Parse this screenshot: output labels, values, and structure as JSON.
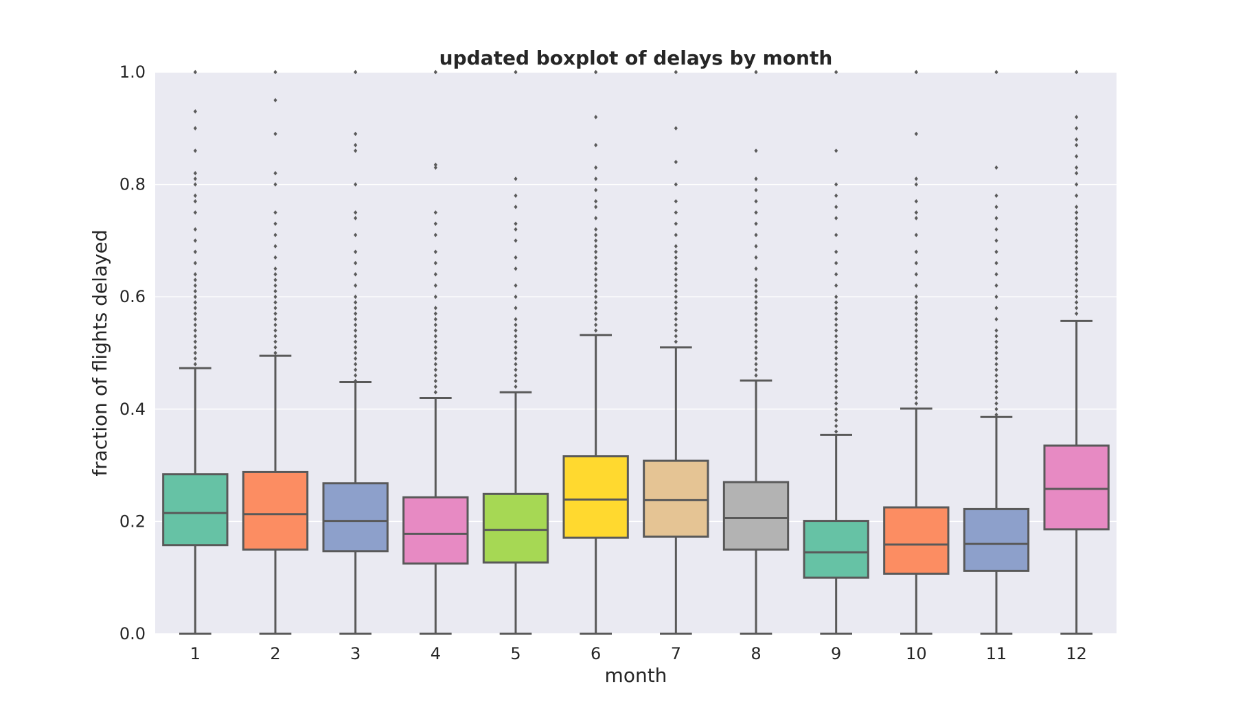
{
  "chart_data": {
    "type": "boxplot",
    "title": "updated boxplot of delays by month",
    "xlabel": "month",
    "ylabel": "fraction of flights delayed",
    "ylim": [
      0.0,
      1.0
    ],
    "yticks": [
      "0.0",
      "0.2",
      "0.4",
      "0.6",
      "0.8",
      "1.0"
    ],
    "grid": true,
    "categories": [
      "1",
      "2",
      "3",
      "4",
      "5",
      "6",
      "7",
      "8",
      "9",
      "10",
      "11",
      "12"
    ],
    "boxes": [
      {
        "month": "1",
        "min": 0.0,
        "q1": 0.158,
        "median": 0.215,
        "q3": 0.284,
        "max": 0.473,
        "color": "#66c2a5",
        "outliers": [
          0.48,
          0.49,
          0.5,
          0.51,
          0.52,
          0.53,
          0.54,
          0.55,
          0.56,
          0.57,
          0.58,
          0.59,
          0.6,
          0.61,
          0.62,
          0.63,
          0.64,
          0.66,
          0.68,
          0.7,
          0.72,
          0.75,
          0.77,
          0.78,
          0.8,
          0.81,
          0.82,
          0.86,
          0.9,
          0.93,
          1.0
        ]
      },
      {
        "month": "2",
        "min": 0.0,
        "q1": 0.15,
        "median": 0.213,
        "q3": 0.288,
        "max": 0.495,
        "color": "#fc8d62",
        "outliers": [
          0.5,
          0.51,
          0.52,
          0.53,
          0.54,
          0.55,
          0.56,
          0.57,
          0.58,
          0.59,
          0.6,
          0.61,
          0.62,
          0.63,
          0.64,
          0.65,
          0.67,
          0.69,
          0.71,
          0.73,
          0.75,
          0.8,
          0.82,
          0.89,
          0.95,
          1.0
        ]
      },
      {
        "month": "3",
        "min": 0.0,
        "q1": 0.147,
        "median": 0.201,
        "q3": 0.268,
        "max": 0.448,
        "color": "#8da0cb",
        "outliers": [
          0.45,
          0.46,
          0.47,
          0.48,
          0.49,
          0.5,
          0.51,
          0.52,
          0.53,
          0.54,
          0.55,
          0.56,
          0.57,
          0.58,
          0.59,
          0.6,
          0.62,
          0.64,
          0.66,
          0.68,
          0.71,
          0.74,
          0.75,
          0.8,
          0.86,
          0.87,
          0.89,
          1.0
        ]
      },
      {
        "month": "4",
        "min": 0.0,
        "q1": 0.125,
        "median": 0.178,
        "q3": 0.243,
        "max": 0.42,
        "color": "#e78ac3",
        "outliers": [
          0.43,
          0.44,
          0.45,
          0.46,
          0.47,
          0.48,
          0.49,
          0.5,
          0.51,
          0.52,
          0.53,
          0.54,
          0.55,
          0.56,
          0.57,
          0.58,
          0.6,
          0.62,
          0.64,
          0.66,
          0.68,
          0.71,
          0.73,
          0.75,
          0.83,
          0.835,
          1.0
        ]
      },
      {
        "month": "5",
        "min": 0.0,
        "q1": 0.127,
        "median": 0.185,
        "q3": 0.249,
        "max": 0.43,
        "color": "#a6d854",
        "outliers": [
          0.44,
          0.45,
          0.46,
          0.47,
          0.48,
          0.49,
          0.5,
          0.51,
          0.52,
          0.53,
          0.54,
          0.55,
          0.56,
          0.58,
          0.6,
          0.62,
          0.65,
          0.67,
          0.7,
          0.72,
          0.73,
          0.76,
          0.78,
          0.81,
          1.0
        ]
      },
      {
        "month": "6",
        "min": 0.0,
        "q1": 0.171,
        "median": 0.239,
        "q3": 0.316,
        "max": 0.532,
        "color": "#ffd92f",
        "outliers": [
          0.54,
          0.55,
          0.56,
          0.57,
          0.58,
          0.59,
          0.6,
          0.61,
          0.62,
          0.63,
          0.64,
          0.65,
          0.66,
          0.67,
          0.68,
          0.69,
          0.7,
          0.71,
          0.72,
          0.74,
          0.76,
          0.77,
          0.79,
          0.81,
          0.83,
          0.87,
          0.92,
          1.0
        ]
      },
      {
        "month": "7",
        "min": 0.0,
        "q1": 0.173,
        "median": 0.238,
        "q3": 0.308,
        "max": 0.51,
        "color": "#e5c494",
        "outliers": [
          0.52,
          0.53,
          0.54,
          0.55,
          0.56,
          0.57,
          0.58,
          0.59,
          0.6,
          0.61,
          0.62,
          0.63,
          0.64,
          0.65,
          0.66,
          0.67,
          0.68,
          0.69,
          0.71,
          0.73,
          0.75,
          0.77,
          0.8,
          0.84,
          0.9,
          1.0
        ]
      },
      {
        "month": "8",
        "min": 0.0,
        "q1": 0.15,
        "median": 0.206,
        "q3": 0.27,
        "max": 0.451,
        "color": "#b3b3b3",
        "outliers": [
          0.46,
          0.47,
          0.48,
          0.49,
          0.5,
          0.51,
          0.52,
          0.53,
          0.54,
          0.55,
          0.56,
          0.57,
          0.58,
          0.59,
          0.6,
          0.61,
          0.62,
          0.63,
          0.65,
          0.67,
          0.69,
          0.71,
          0.73,
          0.75,
          0.77,
          0.79,
          0.81,
          0.86,
          1.0
        ]
      },
      {
        "month": "9",
        "min": 0.0,
        "q1": 0.1,
        "median": 0.145,
        "q3": 0.201,
        "max": 0.354,
        "color": "#66c2a5",
        "outliers": [
          0.36,
          0.37,
          0.38,
          0.39,
          0.4,
          0.41,
          0.42,
          0.43,
          0.44,
          0.45,
          0.46,
          0.47,
          0.48,
          0.49,
          0.5,
          0.51,
          0.52,
          0.53,
          0.54,
          0.55,
          0.56,
          0.57,
          0.58,
          0.59,
          0.6,
          0.62,
          0.64,
          0.66,
          0.68,
          0.71,
          0.74,
          0.76,
          0.78,
          0.8,
          0.86,
          1.0
        ]
      },
      {
        "month": "10",
        "min": 0.0,
        "q1": 0.107,
        "median": 0.159,
        "q3": 0.225,
        "max": 0.401,
        "color": "#fc8d62",
        "outliers": [
          0.41,
          0.42,
          0.43,
          0.44,
          0.45,
          0.46,
          0.47,
          0.48,
          0.49,
          0.5,
          0.51,
          0.52,
          0.53,
          0.54,
          0.55,
          0.56,
          0.57,
          0.58,
          0.59,
          0.6,
          0.62,
          0.64,
          0.66,
          0.68,
          0.71,
          0.74,
          0.75,
          0.77,
          0.8,
          0.81,
          0.89,
          1.0
        ]
      },
      {
        "month": "11",
        "min": 0.0,
        "q1": 0.112,
        "median": 0.16,
        "q3": 0.222,
        "max": 0.386,
        "color": "#8da0cb",
        "outliers": [
          0.39,
          0.4,
          0.41,
          0.42,
          0.43,
          0.44,
          0.45,
          0.46,
          0.47,
          0.48,
          0.49,
          0.5,
          0.51,
          0.52,
          0.53,
          0.54,
          0.56,
          0.58,
          0.6,
          0.62,
          0.64,
          0.66,
          0.68,
          0.7,
          0.72,
          0.74,
          0.76,
          0.78,
          0.83,
          1.0
        ]
      },
      {
        "month": "12",
        "min": 0.0,
        "q1": 0.186,
        "median": 0.258,
        "q3": 0.335,
        "max": 0.557,
        "color": "#e78ac3",
        "outliers": [
          0.57,
          0.58,
          0.59,
          0.6,
          0.61,
          0.62,
          0.63,
          0.64,
          0.65,
          0.66,
          0.67,
          0.68,
          0.69,
          0.7,
          0.71,
          0.72,
          0.73,
          0.74,
          0.75,
          0.76,
          0.78,
          0.8,
          0.82,
          0.83,
          0.85,
          0.87,
          0.88,
          0.9,
          0.92,
          1.0
        ]
      }
    ]
  }
}
